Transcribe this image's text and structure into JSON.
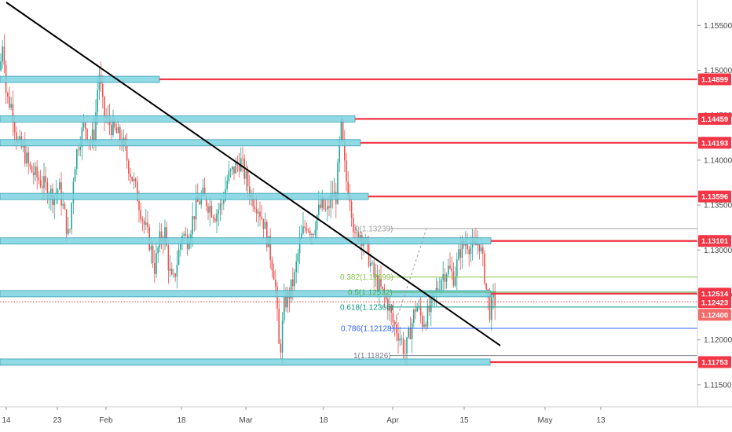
{
  "chart_data": {
    "type": "candlestick",
    "symbol_context": "EURUSD daily-style price chart with support/resistance zones, trendline and Fibonacci retracement",
    "y_axis": {
      "range": [
        1.11473,
        1.15651
      ],
      "tick_labels": [
        "1.15500",
        "1.15000",
        "1.14500",
        "1.14000",
        "1.13500",
        "1.13000",
        "1.12500",
        "1.12000",
        "1.11500"
      ],
      "tick_values": [
        1.155,
        1.15,
        1.145,
        1.14,
        1.135,
        1.13,
        1.125,
        1.12,
        1.115
      ]
    },
    "x_axis": {
      "tick_labels": [
        "14",
        "23",
        "Feb",
        "18",
        "Mar",
        "18",
        "Apr",
        "15",
        "May",
        "13"
      ]
    },
    "horizontal_levels": [
      {
        "label": "1.14899",
        "value": 1.14899,
        "color": "#f23645"
      },
      {
        "label": "1.14459",
        "value": 1.14459,
        "color": "#f23645"
      },
      {
        "label": "1.14193",
        "value": 1.14193,
        "color": "#f23645"
      },
      {
        "label": "1.13596",
        "value": 1.13596,
        "color": "#f23645"
      },
      {
        "label": "1.13101",
        "value": 1.13101,
        "color": "#f23645"
      },
      {
        "label": "1.12514",
        "value": 1.12514,
        "color": "#f23645"
      },
      {
        "label": "1.11753",
        "value": 1.11753,
        "color": "#f23645"
      }
    ],
    "price_markers": [
      {
        "label": "1.12423",
        "value": 1.12423,
        "color": "#f23645",
        "style": "dotted"
      },
      {
        "label": "1.12400",
        "value": 1.124,
        "color": "#f23645",
        "style": "solid"
      }
    ],
    "fibonacci": [
      {
        "label": "0(1.13239)",
        "ratio": 0,
        "value": 1.13239,
        "color": "#9e9e9e"
      },
      {
        "label": "0.382(1.12699)",
        "ratio": 0.382,
        "value": 1.12699,
        "color": "#8bc34a"
      },
      {
        "label": "0.5(1.12532)",
        "ratio": 0.5,
        "value": 1.12532,
        "color": "#4caf50"
      },
      {
        "label": "0.618(1.12366)",
        "ratio": 0.618,
        "value": 1.12366,
        "color": "#089981"
      },
      {
        "label": "0.786(1.12128)",
        "ratio": 0.786,
        "value": 1.12128,
        "color": "#2962ff"
      },
      {
        "label": "1(1.11826)",
        "ratio": 1,
        "value": 1.11826,
        "color": "#787b86"
      }
    ],
    "trendline": {
      "start": [
        0,
        1.1565
      ],
      "end": [
        90,
        1.1235
      ],
      "color": "#000000"
    },
    "grid": false,
    "colors": {
      "up": "#26a69a",
      "down": "#ef5350",
      "zone": "#7dd3e0",
      "axis_text": "#4a4a4a"
    }
  }
}
